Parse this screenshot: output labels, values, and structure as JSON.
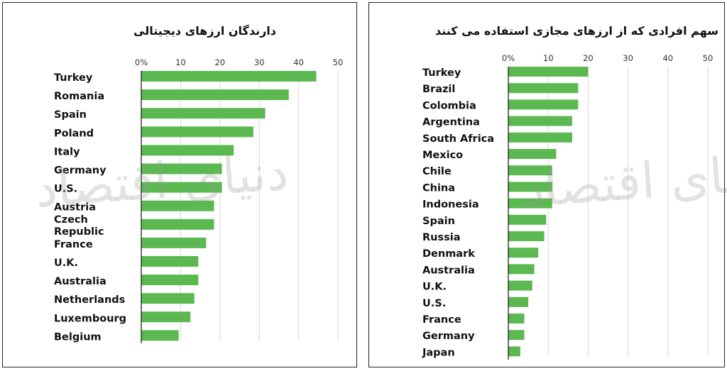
{
  "watermark": "دنیای اقتصاد",
  "chart_data": [
    {
      "type": "bar",
      "orientation": "horizontal",
      "title": "دارندگان ارزهای دیجیتالی",
      "xlim": [
        0,
        50
      ],
      "ticks": [
        "0%",
        "10",
        "20",
        "30",
        "40",
        "50"
      ],
      "grid": true,
      "categories": [
        "Turkey",
        "Romania",
        "Spain",
        "Poland",
        "Italy",
        "Germany",
        "U.S.",
        "Austria",
        "Czech Republic",
        "France",
        "U.K.",
        "Australia",
        "Netherlands",
        "Luxembourg",
        "Belgium"
      ],
      "values": [
        44.5,
        37.5,
        31.5,
        28.5,
        23.5,
        20.5,
        20.5,
        18.5,
        18.5,
        16.5,
        14.5,
        14.5,
        13.5,
        12.5,
        9.5
      ],
      "color": "#5cb951"
    },
    {
      "type": "bar",
      "orientation": "horizontal",
      "title": "سهم افرادی که از ارزهای مجازی استفاده می کنند",
      "xlim": [
        0,
        50
      ],
      "ticks": [
        "0%",
        "10",
        "20",
        "30",
        "40",
        "50"
      ],
      "grid": true,
      "categories": [
        "Turkey",
        "Brazil",
        "Colombia",
        "Argentina",
        "South Africa",
        "Mexico",
        "Chile",
        "China",
        "Indonesia",
        "Spain",
        "Russia",
        "Denmark",
        "Australia",
        "U.K.",
        "U.S.",
        "France",
        "Germany",
        "Japan"
      ],
      "values": [
        20,
        17.5,
        17.5,
        16,
        16,
        12,
        11,
        11,
        11,
        9.5,
        9,
        7.5,
        6.5,
        6,
        5,
        4,
        4,
        3
      ],
      "color": "#5cb951"
    }
  ]
}
